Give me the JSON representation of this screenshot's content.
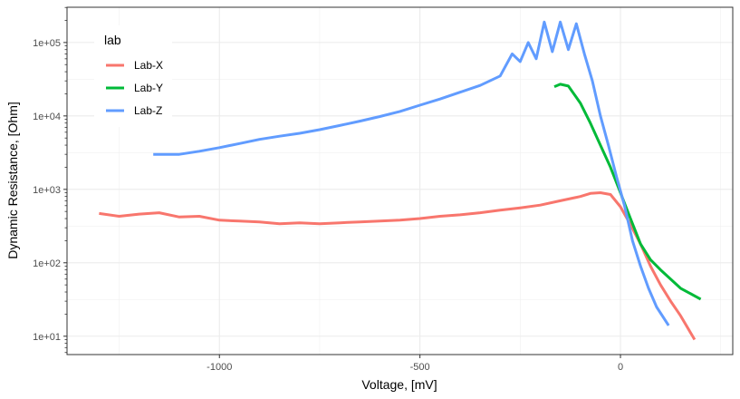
{
  "chart_data": {
    "type": "line",
    "xlabel": "Voltage, [mV]",
    "ylabel": "Dynamic Resistance, [Ohm]",
    "xlim": [
      -1380,
      280
    ],
    "ylim_log10": [
      0.75,
      5.48
    ],
    "y_scale": "log10",
    "grid": true,
    "x_ticks": [
      {
        "value": -1000,
        "label": "-1000"
      },
      {
        "value": -500,
        "label": "-500"
      },
      {
        "value": 0,
        "label": "0"
      }
    ],
    "y_ticks": [
      {
        "value": 10,
        "label": "1e+01"
      },
      {
        "value": 100,
        "label": "1e+02"
      },
      {
        "value": 1000,
        "label": "1e+03"
      },
      {
        "value": 10000,
        "label": "1e+04"
      },
      {
        "value": 100000,
        "label": "1e+05"
      }
    ],
    "legend": {
      "title": "lab",
      "position": "top-left-inside"
    },
    "series": [
      {
        "name": "Lab-X",
        "color": "#F8766D",
        "x": [
          -1300,
          -1250,
          -1200,
          -1150,
          -1100,
          -1050,
          -1000,
          -950,
          -900,
          -850,
          -800,
          -750,
          -700,
          -650,
          -600,
          -550,
          -500,
          -450,
          -400,
          -350,
          -300,
          -250,
          -200,
          -150,
          -100,
          -75,
          -50,
          -25,
          0,
          25,
          50,
          75,
          100,
          125,
          150,
          185
        ],
        "y": [
          470,
          430,
          460,
          480,
          420,
          430,
          380,
          370,
          360,
          340,
          350,
          340,
          350,
          360,
          370,
          380,
          400,
          430,
          450,
          480,
          520,
          560,
          610,
          700,
          800,
          880,
          900,
          850,
          580,
          330,
          180,
          90,
          50,
          30,
          19,
          9
        ]
      },
      {
        "name": "Lab-Y",
        "color": "#00BA38",
        "x": [
          -165,
          -150,
          -130,
          -100,
          -75,
          -50,
          -25,
          0,
          25,
          50,
          75,
          100,
          150,
          200
        ],
        "y": [
          25000,
          27000,
          25500,
          15000,
          8000,
          4000,
          2000,
          900,
          400,
          180,
          110,
          80,
          45,
          32
        ]
      },
      {
        "name": "Lab-Z",
        "color": "#619CFF",
        "x": [
          -1165,
          -1100,
          -1050,
          -1000,
          -950,
          -900,
          -850,
          -800,
          -750,
          -700,
          -650,
          -600,
          -550,
          -500,
          -450,
          -400,
          -350,
          -300,
          -270,
          -250,
          -230,
          -210,
          -190,
          -170,
          -150,
          -130,
          -110,
          -90,
          -70,
          -50,
          -30,
          -10,
          10,
          30,
          50,
          70,
          90,
          120
        ],
        "y": [
          3000,
          3000,
          3300,
          3700,
          4200,
          4800,
          5300,
          5800,
          6500,
          7400,
          8500,
          9800,
          11500,
          14000,
          17000,
          21000,
          26000,
          35000,
          70000,
          55000,
          100000,
          60000,
          190000,
          75000,
          190000,
          80000,
          180000,
          70000,
          30000,
          10000,
          4000,
          1500,
          600,
          200,
          90,
          45,
          25,
          14
        ]
      }
    ]
  }
}
